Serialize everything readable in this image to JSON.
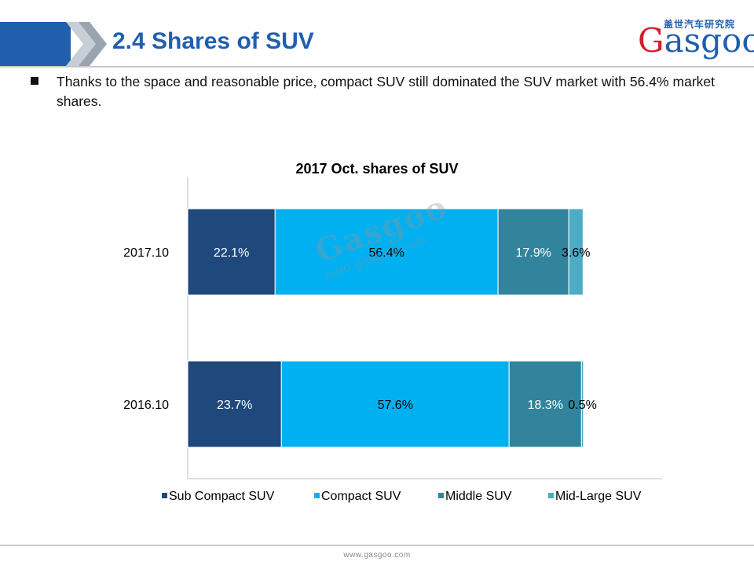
{
  "header": {
    "title": "2.4 Shares of SUV",
    "logo": {
      "chinese": "盖世汽车研究院",
      "wordmark": "Gasgoo"
    },
    "accent_color": "#1f5fae"
  },
  "bullet": {
    "text": "Thanks to the space and reasonable price, compact SUV still dominated the SUV market with 56.4% market shares."
  },
  "chart_data": {
    "type": "bar",
    "orientation": "horizontal",
    "stacked": true,
    "title": "2017 Oct. shares of SUV",
    "categories": [
      "2017.10",
      "2016.10"
    ],
    "series": [
      {
        "name": "Sub Compact SUV",
        "values": [
          22.1,
          23.7
        ],
        "labels": [
          "22.1%",
          "23.7%"
        ],
        "color": "#1f497d"
      },
      {
        "name": "Compact SUV",
        "values": [
          56.4,
          57.6
        ],
        "labels": [
          "56.4%",
          "57.6%"
        ],
        "color": "#00b0f0"
      },
      {
        "name": "Middle SUV",
        "values": [
          17.9,
          18.3
        ],
        "labels": [
          "17.9%",
          "18.3%"
        ],
        "color": "#31849b"
      },
      {
        "name": "Mid-Large SUV",
        "values": [
          3.6,
          0.5
        ],
        "labels": [
          "3.6%",
          "0.5%"
        ],
        "color": "#4bacc6"
      }
    ],
    "xlim": [
      0,
      120
    ],
    "grid": false,
    "legend": "bottom"
  },
  "watermark": {
    "brand": "Gasgoo",
    "chinese": "盖世汽车",
    "url": "auto.gasgoo.com"
  },
  "footer": {
    "url": "www.gasgoo.com"
  }
}
